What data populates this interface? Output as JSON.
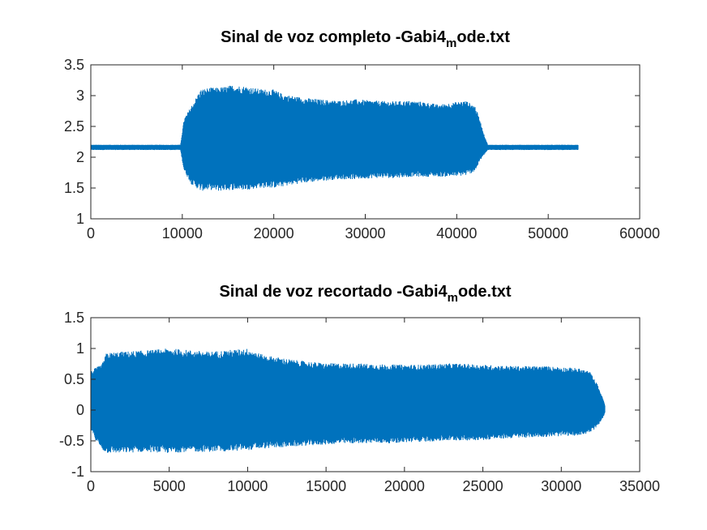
{
  "chart_data": [
    {
      "type": "line",
      "title": "Sinal de voz completo -Gabi4",
      "title_subscript": "m",
      "title_suffix": "ode.txt",
      "xlabel": "",
      "ylabel": "",
      "xlim": [
        0,
        60000
      ],
      "ylim": [
        1,
        3.5
      ],
      "xticks": [
        0,
        10000,
        20000,
        30000,
        40000,
        50000,
        60000
      ],
      "xtick_labels": [
        "0",
        "10000",
        "20000",
        "30000",
        "40000",
        "50000",
        "60000"
      ],
      "yticks": [
        1,
        1.5,
        2,
        2.5,
        3,
        3.5
      ],
      "ytick_labels": [
        "1",
        "1.5",
        "2",
        "2.5",
        "3",
        "3.5"
      ],
      "grid": false,
      "color": "#0072BD",
      "series": [
        {
          "envelope": {
            "x": [
              0,
              2000,
              5000,
              9000,
              9800,
              10200,
              11000,
              12000,
              13000,
              14000,
              15500,
              17000,
              18500,
              20000,
              21000,
              23000,
              25000,
              27000,
              29000,
              31000,
              33000,
              35000,
              36500,
              38000,
              39500,
              41000,
              42000,
              42500,
              43000,
              43400,
              45000,
              48000,
              51000,
              53300
            ],
            "upper": [
              2.2,
              2.2,
              2.2,
              2.2,
              2.2,
              2.6,
              2.8,
              3.05,
              3.08,
              3.08,
              3.12,
              3.1,
              3.06,
              3.05,
              2.98,
              2.93,
              2.9,
              2.88,
              2.9,
              2.88,
              2.87,
              2.88,
              2.86,
              2.82,
              2.85,
              2.88,
              2.8,
              2.6,
              2.35,
              2.2,
              2.2,
              2.2,
              2.2,
              2.2
            ],
            "lower": [
              2.12,
              2.12,
              2.12,
              2.12,
              2.12,
              1.8,
              1.6,
              1.5,
              1.52,
              1.5,
              1.52,
              1.52,
              1.55,
              1.55,
              1.57,
              1.62,
              1.65,
              1.68,
              1.68,
              1.7,
              1.7,
              1.72,
              1.72,
              1.72,
              1.72,
              1.74,
              1.8,
              1.95,
              2.05,
              2.12,
              2.12,
              2.12,
              2.12,
              2.12
            ]
          }
        }
      ]
    },
    {
      "type": "line",
      "title": "Sinal de voz recortado -Gabi4",
      "title_subscript": "m",
      "title_suffix": "ode.txt",
      "xlabel": "",
      "ylabel": "",
      "xlim": [
        0,
        35000
      ],
      "ylim": [
        -1,
        1.5
      ],
      "xticks": [
        0,
        5000,
        10000,
        15000,
        20000,
        25000,
        30000,
        35000
      ],
      "xtick_labels": [
        "0",
        "5000",
        "10000",
        "15000",
        "20000",
        "25000",
        "30000",
        "35000"
      ],
      "yticks": [
        -1,
        -0.5,
        0,
        0.5,
        1,
        1.5
      ],
      "ytick_labels": [
        "-1",
        "-0.5",
        "0",
        "0.5",
        "1",
        "1.5"
      ],
      "grid": false,
      "color": "#0072BD",
      "series": [
        {
          "envelope": {
            "x": [
              0,
              300,
              700,
              1000,
              2000,
              3500,
              5000,
              6000,
              7500,
              9000,
              10000,
              11000,
              13000,
              15000,
              17000,
              19000,
              21000,
              23000,
              25000,
              27000,
              29000,
              31000,
              31800,
              32300,
              32700,
              32800
            ],
            "upper": [
              0.6,
              0.65,
              0.7,
              0.88,
              0.9,
              0.92,
              0.95,
              0.93,
              0.9,
              0.93,
              0.95,
              0.85,
              0.77,
              0.72,
              0.72,
              0.7,
              0.7,
              0.72,
              0.7,
              0.68,
              0.68,
              0.65,
              0.6,
              0.4,
              0.15,
              0.05
            ],
            "lower": [
              -0.3,
              -0.45,
              -0.6,
              -0.65,
              -0.65,
              -0.63,
              -0.65,
              -0.63,
              -0.63,
              -0.62,
              -0.6,
              -0.58,
              -0.55,
              -0.52,
              -0.5,
              -0.5,
              -0.48,
              -0.46,
              -0.45,
              -0.42,
              -0.4,
              -0.38,
              -0.35,
              -0.25,
              -0.1,
              -0.02
            ]
          }
        }
      ]
    }
  ]
}
